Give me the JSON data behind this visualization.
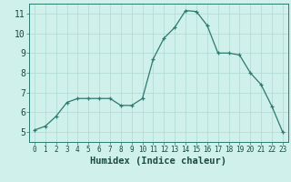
{
  "x": [
    0,
    1,
    2,
    3,
    4,
    5,
    6,
    7,
    8,
    9,
    10,
    11,
    12,
    13,
    14,
    15,
    16,
    17,
    18,
    19,
    20,
    21,
    22,
    23
  ],
  "y": [
    5.1,
    5.3,
    5.8,
    6.5,
    6.7,
    6.7,
    6.7,
    6.7,
    6.35,
    6.35,
    6.7,
    8.7,
    9.75,
    10.3,
    11.15,
    11.1,
    10.4,
    9.0,
    9.0,
    8.9,
    8.0,
    7.4,
    6.3,
    5.0
  ],
  "line_color": "#2d7a6e",
  "bg_color": "#cff0eb",
  "grid_color": "#b0d8d2",
  "xlabel": "Humidex (Indice chaleur)",
  "ylim": [
    4.5,
    11.5
  ],
  "xlim": [
    -0.5,
    23.5
  ],
  "yticks": [
    5,
    6,
    7,
    8,
    9,
    10,
    11
  ],
  "xticks": [
    0,
    1,
    2,
    3,
    4,
    5,
    6,
    7,
    8,
    9,
    10,
    11,
    12,
    13,
    14,
    15,
    16,
    17,
    18,
    19,
    20,
    21,
    22,
    23
  ],
  "tick_color": "#2d7a6e",
  "axis_color": "#2d7a6e",
  "font_color": "#1a4a40",
  "xlabel_fontsize": 7.5,
  "ytick_fontsize": 7.0,
  "xtick_fontsize": 5.5
}
